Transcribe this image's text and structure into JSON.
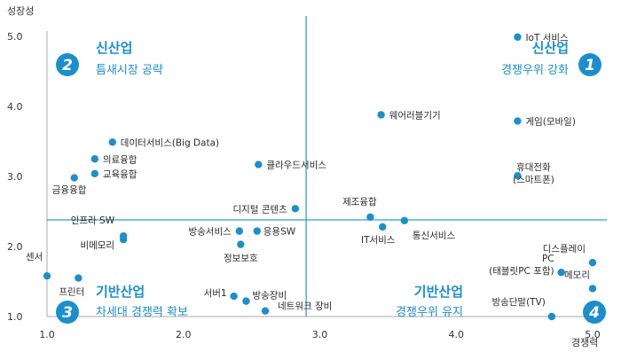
{
  "chart_data": {
    "type": "scatter",
    "ylabel": "성장성",
    "xlabel": "경쟁력",
    "xlim": [
      1.0,
      5.0
    ],
    "ylim": [
      1.0,
      5.0
    ],
    "xticks": [
      "1.0",
      "2.0",
      "3.0",
      "4.0",
      "5.0"
    ],
    "yticks": [
      "1.0",
      "2.0",
      "3.0",
      "4.0",
      "5.0"
    ],
    "divider_x": 2.9,
    "divider_y": 2.38,
    "quadrants": [
      {
        "num": "1",
        "title": "신산업",
        "subtitle": "경쟁우위 강화"
      },
      {
        "num": "2",
        "title": "신산업",
        "subtitle": "틈새시장 공략"
      },
      {
        "num": "3",
        "title": "기반산업",
        "subtitle": "차세대 경쟁력 확보"
      },
      {
        "num": "4",
        "title": "기반산업",
        "subtitle": "경쟁우위 유지"
      }
    ],
    "points": [
      {
        "label": "IoT 서비스",
        "x": 4.45,
        "y": 4.99
      },
      {
        "label": "웨어러블기기",
        "x": 3.45,
        "y": 3.88
      },
      {
        "label": "게임(모바일)",
        "x": 4.45,
        "y": 3.79
      },
      {
        "label": "데이터서비스(Big Data)",
        "x": 1.48,
        "y": 3.49
      },
      {
        "label": "의료융합",
        "x": 1.35,
        "y": 3.25
      },
      {
        "label": "클라우드서비스",
        "x": 2.55,
        "y": 3.17
      },
      {
        "label": "교육융합",
        "x": 1.35,
        "y": 3.04
      },
      {
        "label": "휴대전화 (스마트폰)",
        "x": 4.45,
        "y": 3.01
      },
      {
        "label": "금융융합",
        "x": 1.2,
        "y": 2.98
      },
      {
        "label": "디지털 콘텐츠",
        "x": 2.82,
        "y": 2.54
      },
      {
        "label": "제조융합",
        "x": 3.37,
        "y": 2.42
      },
      {
        "label": "통신서비스",
        "x": 3.62,
        "y": 2.37
      },
      {
        "label": "IT서비스",
        "x": 3.46,
        "y": 2.28
      },
      {
        "label": "인프라 SW",
        "x": 1.56,
        "y": 2.15
      },
      {
        "label": "비메모리",
        "x": 1.56,
        "y": 2.1
      },
      {
        "label": "방송서비스",
        "x": 2.41,
        "y": 2.22
      },
      {
        "label": "응용SW",
        "x": 2.54,
        "y": 2.22
      },
      {
        "label": "정보보호",
        "x": 2.42,
        "y": 2.03
      },
      {
        "label": "디스플레이",
        "x": 5.0,
        "y": 1.77
      },
      {
        "label": "PC (태블릿PC 포함)",
        "x": 4.77,
        "y": 1.63
      },
      {
        "label": "센서",
        "x": 1.0,
        "y": 1.58
      },
      {
        "label": "프린터",
        "x": 1.23,
        "y": 1.55
      },
      {
        "label": "메모리",
        "x": 5.0,
        "y": 1.4
      },
      {
        "label": "서버1",
        "x": 2.37,
        "y": 1.29
      },
      {
        "label": "방송장비",
        "x": 2.46,
        "y": 1.22
      },
      {
        "label": "네트워크 장비",
        "x": 2.6,
        "y": 1.08
      },
      {
        "label": "방송단말(TV)",
        "x": 4.7,
        "y": 1.0
      }
    ]
  }
}
